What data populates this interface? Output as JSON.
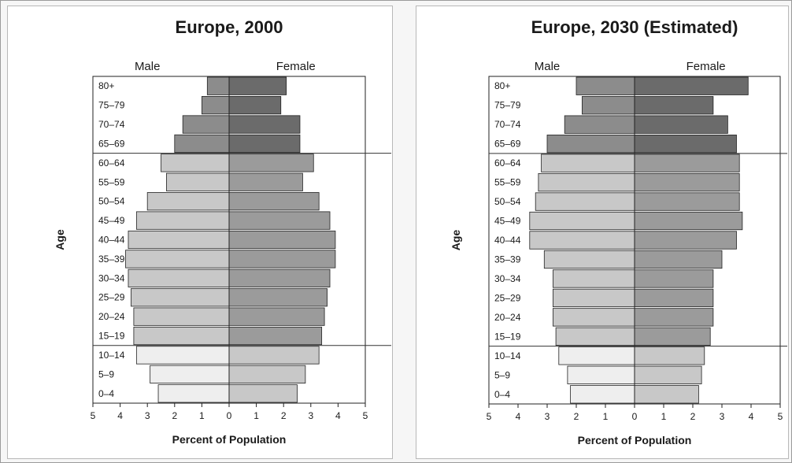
{
  "chart_data": [
    {
      "type": "bar",
      "orientation": "horizontal-population-pyramid",
      "title": "Europe, 2000",
      "xlabel": "Percent of Population",
      "ylabel": "Age",
      "xlim": [
        -5,
        5
      ],
      "xticks": [
        "5",
        "4",
        "3",
        "2",
        "1",
        "0",
        "1",
        "2",
        "3",
        "4",
        "5"
      ],
      "categories": [
        "80+",
        "75–79",
        "70–74",
        "65–69",
        "60–64",
        "55–59",
        "50–54",
        "45–49",
        "40–44",
        "35–39",
        "30–34",
        "25–29",
        "20–24",
        "15–19",
        "10–14",
        "5–9",
        "0–4"
      ],
      "series": [
        {
          "name": "Male",
          "values": [
            0.8,
            1.0,
            1.7,
            2.0,
            2.5,
            2.3,
            3.0,
            3.4,
            3.7,
            3.8,
            3.7,
            3.6,
            3.5,
            3.5,
            3.4,
            2.9,
            2.6
          ]
        },
        {
          "name": "Female",
          "values": [
            2.1,
            1.9,
            2.6,
            2.6,
            3.1,
            2.7,
            3.3,
            3.7,
            3.9,
            3.9,
            3.7,
            3.6,
            3.5,
            3.4,
            3.3,
            2.8,
            2.5
          ]
        }
      ],
      "age_groups": [
        {
          "range": [
            0,
            3
          ],
          "male_color": "#8c8c8c",
          "female_color": "#6b6b6b"
        },
        {
          "range": [
            4,
            13
          ],
          "male_color": "#c8c8c8",
          "female_color": "#9b9b9b"
        },
        {
          "range": [
            14,
            16
          ],
          "male_color": "#eeeeee",
          "female_color": "#c8c8c8"
        }
      ],
      "grid": false,
      "legend": "Male top-left, Female top-right"
    },
    {
      "type": "bar",
      "orientation": "horizontal-population-pyramid",
      "title": "Europe, 2030 (Estimated)",
      "xlabel": "Percent of Population",
      "ylabel": "Age",
      "xlim": [
        -5,
        5
      ],
      "xticks": [
        "5",
        "4",
        "3",
        "2",
        "1",
        "0",
        "1",
        "2",
        "3",
        "4",
        "5"
      ],
      "categories": [
        "80+",
        "75–79",
        "70–74",
        "65–69",
        "60–64",
        "55–59",
        "50–54",
        "45–49",
        "40–44",
        "35–39",
        "30–34",
        "25–29",
        "20–24",
        "15–19",
        "10–14",
        "5–9",
        "0–4"
      ],
      "series": [
        {
          "name": "Male",
          "values": [
            2.0,
            1.8,
            2.4,
            3.0,
            3.2,
            3.3,
            3.4,
            3.6,
            3.6,
            3.1,
            2.8,
            2.8,
            2.8,
            2.7,
            2.6,
            2.3,
            2.2
          ]
        },
        {
          "name": "Female",
          "values": [
            3.9,
            2.7,
            3.2,
            3.5,
            3.6,
            3.6,
            3.6,
            3.7,
            3.5,
            3.0,
            2.7,
            2.7,
            2.7,
            2.6,
            2.4,
            2.3,
            2.2
          ]
        }
      ],
      "age_groups": [
        {
          "range": [
            0,
            3
          ],
          "male_color": "#8c8c8c",
          "female_color": "#6b6b6b"
        },
        {
          "range": [
            4,
            13
          ],
          "male_color": "#c8c8c8",
          "female_color": "#9b9b9b"
        },
        {
          "range": [
            14,
            16
          ],
          "male_color": "#eeeeee",
          "female_color": "#c8c8c8"
        }
      ],
      "grid": false,
      "legend": "Male top-left, Female top-right"
    }
  ]
}
